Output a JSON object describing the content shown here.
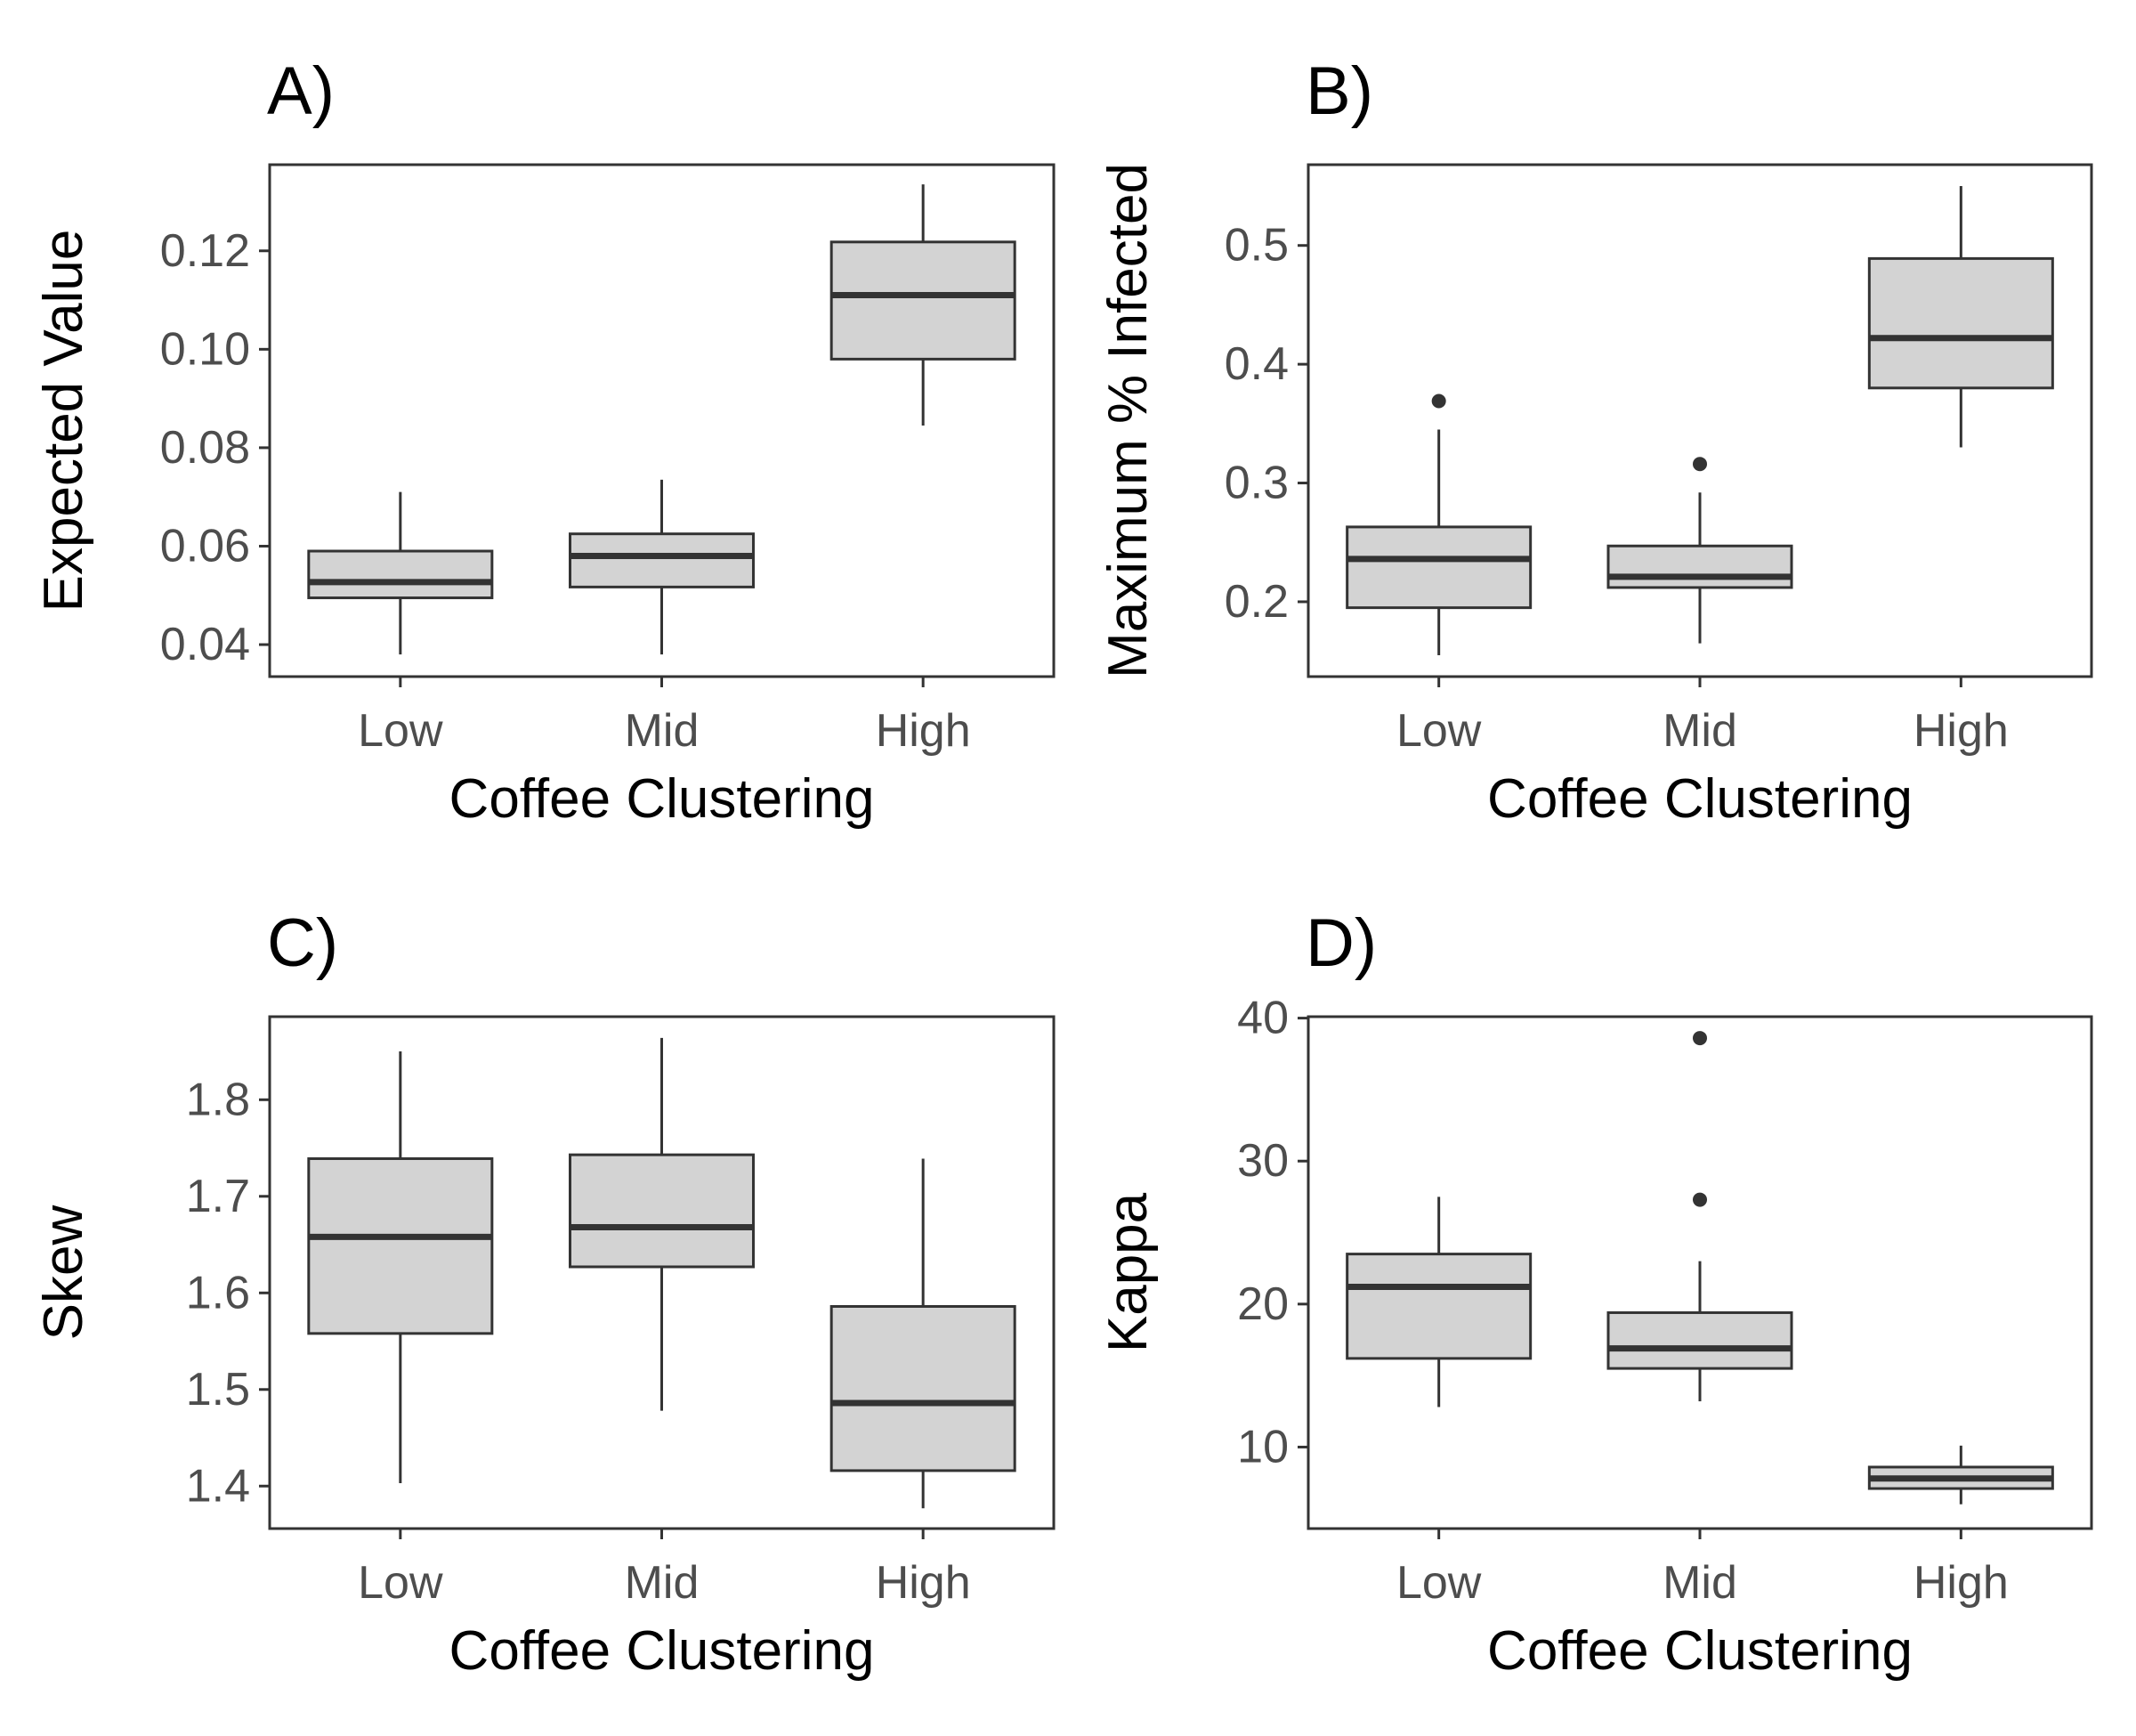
{
  "chart_data": [
    {
      "type": "box",
      "panel_label": "A)",
      "xlabel": "Coffee Clustering",
      "ylabel": "Expected Value",
      "categories": [
        "Low",
        "Mid",
        "High"
      ],
      "ylim": [
        0.0335,
        0.1375
      ],
      "yticks": [
        0.04,
        0.06,
        0.08,
        0.1,
        0.12
      ],
      "ytick_labels": [
        "0.04",
        "0.06",
        "0.08",
        "0.10",
        "0.12"
      ],
      "box_fill": "#d3d3d3",
      "line_color": "#333333",
      "boxes": [
        {
          "category": "Low",
          "whisker_low": 0.038,
          "q1": 0.0495,
          "median": 0.0527,
          "q3": 0.059,
          "whisker_high": 0.071,
          "outliers": []
        },
        {
          "category": "Mid",
          "whisker_low": 0.038,
          "q1": 0.0517,
          "median": 0.058,
          "q3": 0.0625,
          "whisker_high": 0.0735,
          "outliers": []
        },
        {
          "category": "High",
          "whisker_low": 0.0845,
          "q1": 0.098,
          "median": 0.111,
          "q3": 0.1218,
          "whisker_high": 0.1335,
          "outliers": []
        }
      ]
    },
    {
      "type": "box",
      "panel_label": "B)",
      "xlabel": "Coffee Clustering",
      "ylabel": "Maximum % Infected",
      "categories": [
        "Low",
        "Mid",
        "High"
      ],
      "ylim": [
        0.137,
        0.568
      ],
      "yticks": [
        0.2,
        0.3,
        0.4,
        0.5
      ],
      "ytick_labels": [
        "0.2",
        "0.3",
        "0.4",
        "0.5"
      ],
      "box_fill": "#d3d3d3",
      "line_color": "#333333",
      "boxes": [
        {
          "category": "Low",
          "whisker_low": 0.155,
          "q1": 0.195,
          "median": 0.236,
          "q3": 0.263,
          "whisker_high": 0.345,
          "outliers": [
            0.369
          ]
        },
        {
          "category": "Mid",
          "whisker_low": 0.165,
          "q1": 0.212,
          "median": 0.221,
          "q3": 0.247,
          "whisker_high": 0.292,
          "outliers": [
            0.316
          ]
        },
        {
          "category": "High",
          "whisker_low": 0.33,
          "q1": 0.38,
          "median": 0.422,
          "q3": 0.489,
          "whisker_high": 0.55,
          "outliers": []
        }
      ]
    },
    {
      "type": "box",
      "panel_label": "C)",
      "xlabel": "Coffee Clustering",
      "ylabel": "Skew",
      "categories": [
        "Low",
        "Mid",
        "High"
      ],
      "ylim": [
        1.356,
        1.886
      ],
      "yticks": [
        1.4,
        1.5,
        1.6,
        1.7,
        1.8
      ],
      "ytick_labels": [
        "1.4",
        "1.5",
        "1.6",
        "1.7",
        "1.8"
      ],
      "box_fill": "#d3d3d3",
      "line_color": "#333333",
      "boxes": [
        {
          "category": "Low",
          "whisker_low": 1.403,
          "q1": 1.558,
          "median": 1.658,
          "q3": 1.739,
          "whisker_high": 1.85,
          "outliers": []
        },
        {
          "category": "Mid",
          "whisker_low": 1.478,
          "q1": 1.627,
          "median": 1.668,
          "q3": 1.743,
          "whisker_high": 1.864,
          "outliers": []
        },
        {
          "category": "High",
          "whisker_low": 1.377,
          "q1": 1.416,
          "median": 1.486,
          "q3": 1.586,
          "whisker_high": 1.739,
          "outliers": []
        }
      ]
    },
    {
      "type": "box",
      "panel_label": "D)",
      "xlabel": "Coffee Clustering",
      "ylabel": "Kappa",
      "categories": [
        "Low",
        "Mid",
        "High"
      ],
      "ylim": [
        4.3,
        40.1
      ],
      "yticks": [
        10,
        20,
        30,
        40
      ],
      "ytick_labels": [
        "10",
        "20",
        "30",
        "40"
      ],
      "box_fill": "#d3d3d3",
      "line_color": "#333333",
      "boxes": [
        {
          "category": "Low",
          "whisker_low": 12.8,
          "q1": 16.2,
          "median": 21.2,
          "q3": 23.5,
          "whisker_high": 27.5,
          "outliers": []
        },
        {
          "category": "Mid",
          "whisker_low": 13.2,
          "q1": 15.5,
          "median": 16.9,
          "q3": 19.4,
          "whisker_high": 23.0,
          "outliers": [
            27.3,
            38.6
          ]
        },
        {
          "category": "High",
          "whisker_low": 6.0,
          "q1": 7.1,
          "median": 7.8,
          "q3": 8.6,
          "whisker_high": 10.1,
          "outliers": []
        }
      ]
    }
  ]
}
